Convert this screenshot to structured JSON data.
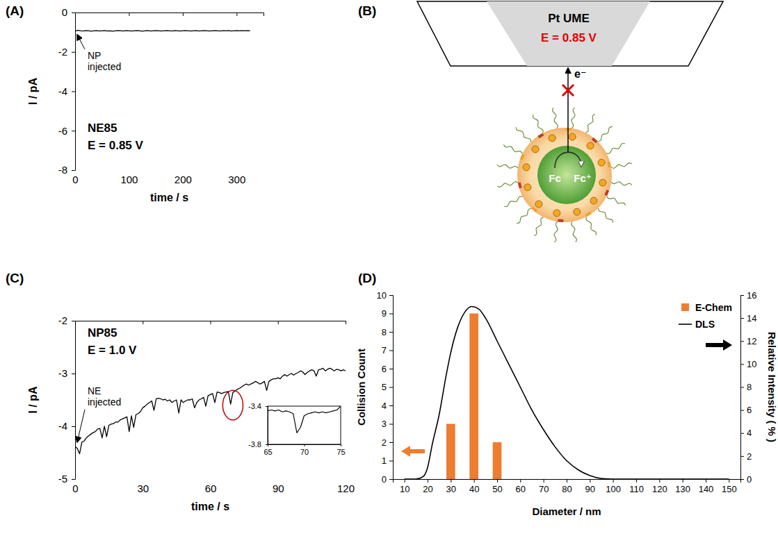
{
  "chart_data": [
    {
      "panel": "(A)",
      "type": "line",
      "xlabel": "time / s",
      "ylabel": "I / pA",
      "xlim": [
        0,
        350
      ],
      "xticks": [
        0,
        100,
        200,
        300
      ],
      "ylim": [
        -8,
        0
      ],
      "yticks": [
        -8,
        -6,
        -4,
        -2,
        0
      ],
      "labels": [
        "NE85",
        "E = 0.85 V"
      ],
      "annotation": [
        "NP",
        "injected"
      ],
      "x": [
        0,
        5,
        10,
        15,
        20,
        25,
        30,
        35,
        40,
        45,
        50,
        55,
        60,
        65,
        70,
        75,
        80,
        85,
        90,
        95,
        100,
        105,
        110,
        115,
        120,
        125,
        130,
        135,
        140,
        145,
        150,
        155,
        160,
        165,
        170,
        175,
        180,
        185,
        190,
        195,
        200,
        205,
        210,
        215,
        220,
        225,
        230,
        235,
        240,
        245,
        250,
        255,
        260,
        265,
        270,
        275,
        280,
        285,
        290,
        295,
        300,
        305,
        310,
        315,
        320,
        325
      ],
      "series": [
        {
          "color": "#000000",
          "values": [
            -0.95,
            -0.9,
            -0.93,
            -0.94,
            -0.92,
            -0.93,
            -0.95,
            -0.93,
            -0.92,
            -0.94,
            -0.93,
            -0.92,
            -0.94,
            -0.93,
            -0.95,
            -0.93,
            -0.92,
            -0.93,
            -0.94,
            -0.92,
            -0.93,
            -0.94,
            -0.93,
            -0.92,
            -0.93,
            -0.95,
            -0.93,
            -0.92,
            -0.94,
            -0.93,
            -0.92,
            -0.93,
            -0.94,
            -0.93,
            -0.92,
            -0.93,
            -0.94,
            -0.92,
            -0.93,
            -0.94,
            -0.93,
            -0.92,
            -0.93,
            -0.94,
            -0.93,
            -0.92,
            -0.94,
            -0.93,
            -0.92,
            -0.93,
            -0.94,
            -0.93,
            -0.92,
            -0.93,
            -0.94,
            -0.92,
            -0.93,
            -0.92,
            -0.94,
            -0.93,
            -0.92,
            -0.93,
            -0.92,
            -0.93,
            -0.92,
            -0.93
          ]
        }
      ]
    },
    {
      "panel": "(C)",
      "type": "line",
      "xlabel": "time / s",
      "ylabel": "I / pA",
      "xlim": [
        0,
        120
      ],
      "xticks": [
        0,
        30,
        60,
        90,
        120
      ],
      "ylim": [
        -5,
        -2
      ],
      "yticks": [
        -5,
        -4,
        -3,
        -2
      ],
      "labels": [
        "NP85",
        "E = 1.0 V"
      ],
      "annotation": [
        "NE",
        "injected"
      ],
      "x": [
        0,
        1,
        2,
        3,
        4,
        5,
        6,
        7,
        8,
        9,
        10,
        11,
        12,
        13,
        14,
        15,
        16,
        17,
        18,
        19,
        20,
        21,
        22,
        23,
        24,
        25,
        26,
        27,
        28,
        29,
        30,
        31,
        32,
        33,
        34,
        35,
        36,
        37,
        38,
        39,
        40,
        41,
        42,
        43,
        44,
        45,
        46,
        47,
        48,
        49,
        50,
        51,
        52,
        53,
        54,
        55,
        56,
        57,
        58,
        59,
        60,
        61,
        62,
        63,
        64,
        65,
        66,
        67,
        68,
        69,
        70,
        71,
        72,
        73,
        74,
        75,
        76,
        77,
        78,
        79,
        80,
        81,
        82,
        83,
        84,
        85,
        86,
        87,
        88,
        89,
        90,
        91,
        92,
        93,
        94,
        95,
        96,
        97,
        98,
        99,
        100,
        101,
        102,
        103,
        104,
        105,
        106,
        107,
        108,
        109,
        110,
        111,
        112,
        113,
        114,
        115,
        116,
        117,
        118,
        119,
        120
      ],
      "series": [
        {
          "color": "#000000",
          "values": [
            -4.38,
            -4.42,
            -4.52,
            -4.3,
            -4.28,
            -4.22,
            -4.18,
            -4.15,
            -4.12,
            -4.1,
            -4.05,
            -4.04,
            -4.22,
            -4.0,
            -4.2,
            -3.98,
            -3.96,
            -3.95,
            -3.92,
            -3.92,
            -3.88,
            -3.86,
            -3.84,
            -3.82,
            -4.1,
            -3.8,
            -4.02,
            -3.78,
            -3.76,
            -3.72,
            -3.65,
            -3.62,
            -3.58,
            -3.55,
            -3.52,
            -3.7,
            -3.48,
            -3.47,
            -3.48,
            -3.5,
            -3.49,
            -3.52,
            -3.5,
            -3.55,
            -3.52,
            -3.5,
            -3.75,
            -3.5,
            -3.55,
            -3.52,
            -3.5,
            -3.5,
            -3.48,
            -3.65,
            -3.55,
            -3.5,
            -3.48,
            -3.45,
            -3.62,
            -3.42,
            -3.4,
            -3.38,
            -3.55,
            -3.35,
            -3.36,
            -3.38,
            -3.36,
            -3.35,
            -3.34,
            -3.58,
            -3.36,
            -3.33,
            -3.3,
            -3.28,
            -3.25,
            -3.22,
            -3.2,
            -3.22,
            -3.2,
            -3.18,
            -3.15,
            -3.17,
            -3.2,
            -3.18,
            -3.15,
            -3.32,
            -3.15,
            -3.12,
            -3.1,
            -3.1,
            -3.08,
            -3.1,
            -3.05,
            -3.02,
            -3.05,
            -3.02,
            -3.0,
            -3.03,
            -3.0,
            -2.98,
            -2.95,
            -2.97,
            -3.02,
            -2.98,
            -2.95,
            -2.93,
            -2.95,
            -3.05,
            -2.93,
            -2.92,
            -2.9,
            -2.95,
            -2.92,
            -2.9,
            -2.92,
            -2.95,
            -2.92,
            -2.93,
            -2.95,
            -2.93,
            -2.95
          ]
        }
      ],
      "inset": {
        "type": "line",
        "xlim": [
          65,
          75
        ],
        "xticks": [
          65,
          70,
          75
        ],
        "ylim": [
          -3.8,
          -3.4
        ],
        "yticks": [
          -3.8,
          -3.4
        ],
        "x": [
          65,
          65.5,
          66,
          66.5,
          67,
          67.5,
          68,
          68.5,
          69,
          69.5,
          70,
          70.5,
          71,
          71.5,
          72,
          72.5,
          73,
          73.5,
          74,
          74.5,
          75
        ],
        "series": [
          {
            "color": "#000000",
            "values": [
              -3.45,
              -3.44,
              -3.45,
              -3.44,
              -3.46,
              -3.45,
              -3.46,
              -3.48,
              -3.68,
              -3.62,
              -3.5,
              -3.48,
              -3.47,
              -3.46,
              -3.47,
              -3.46,
              -3.47,
              -3.46,
              -3.45,
              -3.44,
              -3.4
            ]
          }
        ]
      }
    },
    {
      "panel": "(D)",
      "type": "bar",
      "xlabel": "Diameter / nm",
      "ylabel": "Collision Count",
      "y2label": "Relative Intensity ( % )",
      "xlim": [
        5,
        155
      ],
      "xticks": [
        10,
        20,
        30,
        40,
        50,
        60,
        70,
        80,
        90,
        100,
        110,
        120,
        130,
        140,
        150
      ],
      "ylim": [
        0,
        10
      ],
      "yticks": [
        0,
        1,
        2,
        3,
        4,
        5,
        6,
        7,
        8,
        9,
        10
      ],
      "y2lim": [
        0,
        16
      ],
      "y2ticks": [
        0,
        2,
        4,
        6,
        8,
        10,
        12,
        14,
        16
      ],
      "legend": "top-right",
      "series": [
        {
          "name": "E-Chem",
          "type": "bar",
          "color": "#ed7d31",
          "x": [
            30,
            40,
            50
          ],
          "values": [
            3,
            9,
            2
          ]
        },
        {
          "name": "DLS",
          "type": "line",
          "color": "#000000",
          "axis": "y2",
          "x": [
            10,
            15,
            18,
            20,
            22,
            25,
            28,
            30,
            33,
            36,
            39,
            42,
            45,
            50,
            55,
            60,
            65,
            70,
            75,
            80,
            85,
            90,
            95,
            100,
            110,
            120,
            130,
            140,
            150
          ],
          "values": [
            0,
            0,
            0.2,
            1.0,
            3.0,
            5.6,
            9.0,
            11.0,
            13.2,
            14.5,
            15.0,
            14.8,
            14.0,
            12.0,
            10.0,
            8.0,
            6.0,
            4.3,
            2.8,
            1.6,
            0.8,
            0.3,
            0.05,
            0,
            0,
            0,
            0,
            0,
            0
          ]
        }
      ]
    }
  ],
  "diagram": {
    "panel": "(B)",
    "electrode": "Pt UME",
    "potential": "E = 0.85 V",
    "electron": "e⁻",
    "reactant": "Fc",
    "product": "Fc⁺"
  }
}
